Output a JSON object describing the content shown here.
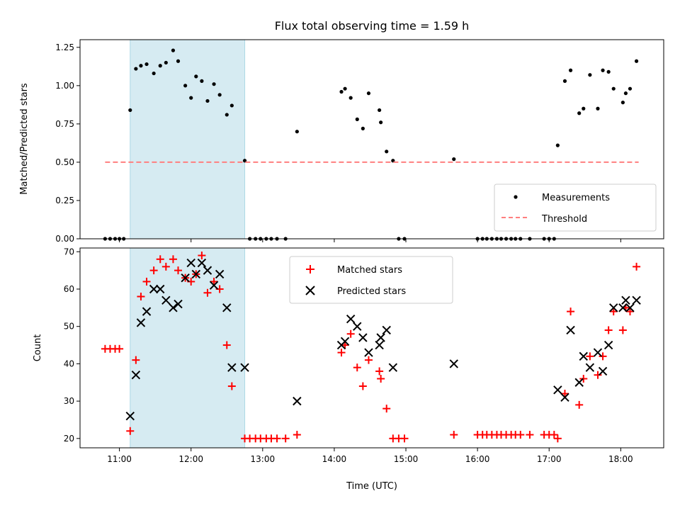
{
  "chart_data": [
    {
      "type": "scatter",
      "title": "Flux total observing time = 1.59 h",
      "xlabel": "",
      "ylabel": "Matched/Predicted stars",
      "xlim": [
        10.45,
        18.6
      ],
      "ylim": [
        0,
        1.3
      ],
      "yticks": [
        "0.00",
        "0.25",
        "0.50",
        "0.75",
        "1.00",
        "1.25"
      ],
      "legend": {
        "position": "lower-right",
        "entries": [
          "Measurements",
          "Threshold"
        ]
      },
      "highlight_span": [
        11.15,
        12.75
      ],
      "series": [
        {
          "name": "Measurements",
          "color": "#000000",
          "marker": "dot",
          "points": [
            [
              10.8,
              0
            ],
            [
              10.87,
              0
            ],
            [
              10.94,
              0
            ],
            [
              11.0,
              0
            ],
            [
              11.06,
              0
            ],
            [
              11.15,
              0.84
            ],
            [
              11.23,
              1.11
            ],
            [
              11.3,
              1.13
            ],
            [
              11.38,
              1.14
            ],
            [
              11.48,
              1.08
            ],
            [
              11.57,
              1.13
            ],
            [
              11.65,
              1.15
            ],
            [
              11.75,
              1.23
            ],
            [
              11.82,
              1.16
            ],
            [
              11.92,
              1.0
            ],
            [
              12.0,
              0.92
            ],
            [
              12.07,
              1.06
            ],
            [
              12.15,
              1.03
            ],
            [
              12.23,
              0.9
            ],
            [
              12.32,
              1.01
            ],
            [
              12.4,
              0.94
            ],
            [
              12.5,
              0.81
            ],
            [
              12.57,
              0.87
            ],
            [
              12.75,
              0.51
            ],
            [
              12.82,
              0
            ],
            [
              12.9,
              0
            ],
            [
              12.97,
              0
            ],
            [
              13.05,
              0
            ],
            [
              13.12,
              0
            ],
            [
              13.2,
              0
            ],
            [
              13.32,
              0
            ],
            [
              13.48,
              0.7
            ],
            [
              14.1,
              0.96
            ],
            [
              14.15,
              0.98
            ],
            [
              14.23,
              0.92
            ],
            [
              14.32,
              0.78
            ],
            [
              14.4,
              0.72
            ],
            [
              14.48,
              0.95
            ],
            [
              14.63,
              0.84
            ],
            [
              14.65,
              0.76
            ],
            [
              14.73,
              0.57
            ],
            [
              14.82,
              0.51
            ],
            [
              14.9,
              0
            ],
            [
              14.98,
              0
            ],
            [
              15.67,
              0.52
            ],
            [
              16.0,
              0
            ],
            [
              16.07,
              0
            ],
            [
              16.13,
              0
            ],
            [
              16.2,
              0
            ],
            [
              16.27,
              0
            ],
            [
              16.33,
              0
            ],
            [
              16.4,
              0
            ],
            [
              16.47,
              0
            ],
            [
              16.53,
              0
            ],
            [
              16.6,
              0
            ],
            [
              16.73,
              0
            ],
            [
              16.93,
              0
            ],
            [
              17.0,
              0
            ],
            [
              17.07,
              0
            ],
            [
              17.12,
              0.61
            ],
            [
              17.22,
              1.03
            ],
            [
              17.3,
              1.1
            ],
            [
              17.42,
              0.82
            ],
            [
              17.48,
              0.85
            ],
            [
              17.57,
              1.07
            ],
            [
              17.68,
              0.85
            ],
            [
              17.75,
              1.1
            ],
            [
              17.83,
              1.09
            ],
            [
              17.9,
              0.98
            ],
            [
              18.03,
              0.89
            ],
            [
              18.07,
              0.95
            ],
            [
              18.13,
              0.98
            ],
            [
              18.22,
              1.16
            ]
          ]
        },
        {
          "name": "Threshold",
          "color": "#ff7f7f",
          "style": "dashed",
          "y": 0.5,
          "x_range": [
            10.8,
            18.25
          ]
        }
      ]
    },
    {
      "type": "scatter",
      "title": "",
      "xlabel": "Time (UTC)",
      "ylabel": "Count",
      "xlim": [
        10.45,
        18.6
      ],
      "ylim": [
        17.5,
        71
      ],
      "yticks": [
        "20",
        "30",
        "40",
        "50",
        "60",
        "70"
      ],
      "xticks": [
        "11:00",
        "12:00",
        "13:00",
        "14:00",
        "15:00",
        "16:00",
        "17:00",
        "18:00"
      ],
      "legend": {
        "position": "top-center",
        "entries": [
          "Matched stars",
          "Predicted stars"
        ]
      },
      "highlight_span": [
        11.15,
        12.75
      ],
      "series": [
        {
          "name": "Matched stars",
          "color": "#ff0000",
          "marker": "plus",
          "points": [
            [
              10.8,
              44
            ],
            [
              10.87,
              44
            ],
            [
              10.94,
              44
            ],
            [
              11.0,
              44
            ],
            [
              11.15,
              22
            ],
            [
              11.23,
              41
            ],
            [
              11.3,
              58
            ],
            [
              11.38,
              62
            ],
            [
              11.48,
              65
            ],
            [
              11.57,
              68
            ],
            [
              11.65,
              66
            ],
            [
              11.75,
              68
            ],
            [
              11.82,
              65
            ],
            [
              11.92,
              63
            ],
            [
              12.0,
              62
            ],
            [
              12.07,
              64
            ],
            [
              12.15,
              69
            ],
            [
              12.23,
              59
            ],
            [
              12.32,
              62
            ],
            [
              12.4,
              60
            ],
            [
              12.5,
              45
            ],
            [
              12.57,
              34
            ],
            [
              12.75,
              20
            ],
            [
              12.82,
              20
            ],
            [
              12.9,
              20
            ],
            [
              12.97,
              20
            ],
            [
              13.05,
              20
            ],
            [
              13.12,
              20
            ],
            [
              13.2,
              20
            ],
            [
              13.32,
              20
            ],
            [
              13.48,
              21
            ],
            [
              14.1,
              43
            ],
            [
              14.15,
              45
            ],
            [
              14.23,
              48
            ],
            [
              14.32,
              39
            ],
            [
              14.4,
              34
            ],
            [
              14.48,
              41
            ],
            [
              14.63,
              38
            ],
            [
              14.65,
              36
            ],
            [
              14.73,
              28
            ],
            [
              14.82,
              20
            ],
            [
              14.9,
              20
            ],
            [
              14.98,
              20
            ],
            [
              15.67,
              21
            ],
            [
              16.0,
              21
            ],
            [
              16.07,
              21
            ],
            [
              16.13,
              21
            ],
            [
              16.2,
              21
            ],
            [
              16.27,
              21
            ],
            [
              16.33,
              21
            ],
            [
              16.4,
              21
            ],
            [
              16.47,
              21
            ],
            [
              16.53,
              21
            ],
            [
              16.6,
              21
            ],
            [
              16.73,
              21
            ],
            [
              16.93,
              21
            ],
            [
              17.0,
              21
            ],
            [
              17.07,
              21
            ],
            [
              17.12,
              20
            ],
            [
              17.22,
              32
            ],
            [
              17.3,
              54
            ],
            [
              17.42,
              29
            ],
            [
              17.48,
              36
            ],
            [
              17.57,
              42
            ],
            [
              17.68,
              37
            ],
            [
              17.75,
              42
            ],
            [
              17.83,
              49
            ],
            [
              17.9,
              54
            ],
            [
              18.03,
              49
            ],
            [
              18.07,
              55
            ],
            [
              18.13,
              54
            ],
            [
              18.22,
              66
            ]
          ]
        },
        {
          "name": "Predicted stars",
          "color": "#000000",
          "marker": "x",
          "points": [
            [
              11.15,
              26
            ],
            [
              11.23,
              37
            ],
            [
              11.3,
              51
            ],
            [
              11.38,
              54
            ],
            [
              11.48,
              60
            ],
            [
              11.57,
              60
            ],
            [
              11.65,
              57
            ],
            [
              11.75,
              55
            ],
            [
              11.82,
              56
            ],
            [
              11.92,
              63
            ],
            [
              12.0,
              67
            ],
            [
              12.07,
              64
            ],
            [
              12.15,
              67
            ],
            [
              12.23,
              65
            ],
            [
              12.32,
              61
            ],
            [
              12.4,
              64
            ],
            [
              12.5,
              55
            ],
            [
              12.57,
              39
            ],
            [
              12.75,
              39
            ],
            [
              13.48,
              30
            ],
            [
              14.1,
              45
            ],
            [
              14.15,
              46
            ],
            [
              14.23,
              52
            ],
            [
              14.32,
              50
            ],
            [
              14.4,
              47
            ],
            [
              14.48,
              43
            ],
            [
              14.63,
              45
            ],
            [
              14.65,
              47
            ],
            [
              14.73,
              49
            ],
            [
              14.82,
              39
            ],
            [
              15.67,
              40
            ],
            [
              17.12,
              33
            ],
            [
              17.22,
              31
            ],
            [
              17.3,
              49
            ],
            [
              17.42,
              35
            ],
            [
              17.48,
              42
            ],
            [
              17.57,
              39
            ],
            [
              17.68,
              43
            ],
            [
              17.75,
              38
            ],
            [
              17.83,
              45
            ],
            [
              17.9,
              55
            ],
            [
              18.03,
              55
            ],
            [
              18.07,
              57
            ],
            [
              18.13,
              55
            ],
            [
              18.22,
              57
            ]
          ]
        }
      ]
    }
  ],
  "colors": {
    "span": "#add8e6",
    "threshold": "#ff7f7f",
    "matched": "#ff0000",
    "predicted": "#000000"
  }
}
